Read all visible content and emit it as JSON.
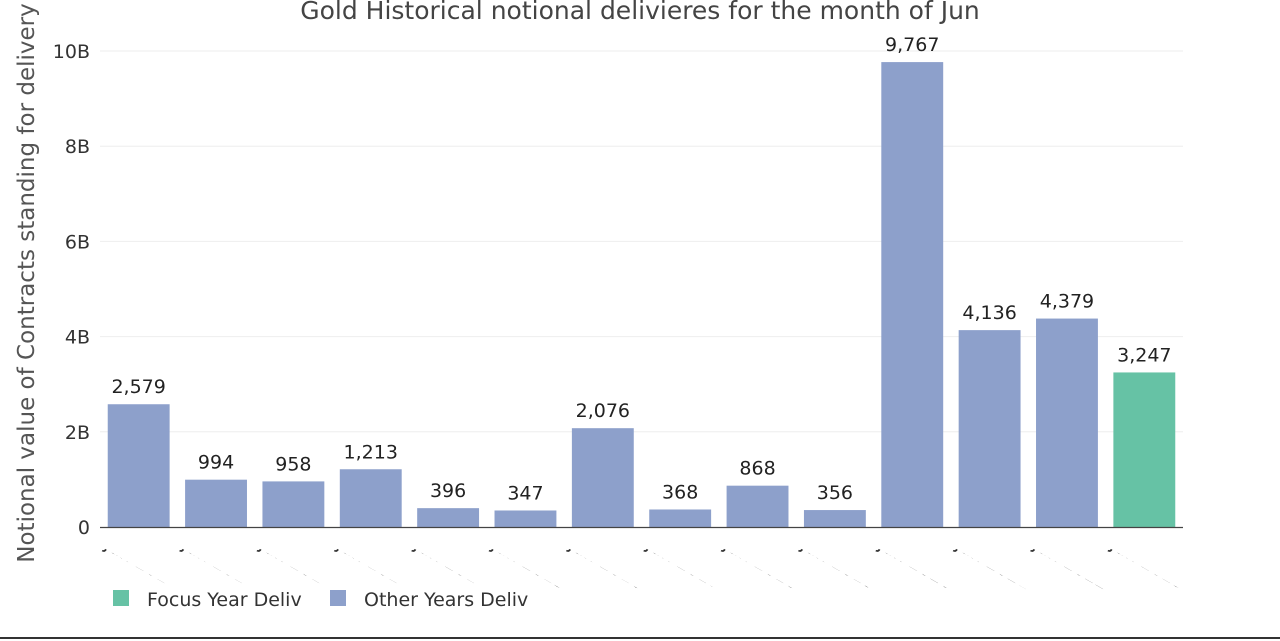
{
  "chart_data": {
    "type": "bar",
    "title": "Gold Historical notional delivieres for the month of Jun",
    "xlabel": "",
    "ylabel": "Notional value of Contracts standing for delivery",
    "ylim": [
      0,
      10.5
    ],
    "yticks": [
      {
        "value": 0,
        "label": "0"
      },
      {
        "value": 2,
        "label": "2B"
      },
      {
        "value": 4,
        "label": "4B"
      },
      {
        "value": 6,
        "label": "6B"
      },
      {
        "value": 8,
        "label": "8B"
      },
      {
        "value": 10,
        "label": "10B"
      }
    ],
    "categories": [
      "Jun 2010",
      "Jun 2011",
      "Jun 2012",
      "Jun 2013",
      "Jun 2014",
      "Jun 2015",
      "Jun 2016",
      "Jun 2017",
      "Jun 2018",
      "Jun 2019",
      "Jun 2020",
      "Jun 2021",
      "Jun 2022",
      "Jun 2023"
    ],
    "tick_labels": [
      "Jun 201",
      "Jun 201",
      "Jun 201",
      "Jun 201",
      "Jun 201",
      "Jun 2015",
      "Jun 2016",
      "Jun 2017",
      "Jun 2018",
      "Jun 2019",
      "Jun 2020",
      "Jun 2021",
      "Jun 2022",
      "Jun 2023"
    ],
    "values": [
      2.579,
      0.994,
      0.958,
      1.213,
      0.396,
      0.347,
      2.076,
      0.368,
      0.868,
      0.356,
      9.767,
      4.136,
      4.379,
      3.247
    ],
    "data_labels": [
      "2,579",
      "994",
      "958",
      "1,213",
      "396",
      "347",
      "2,076",
      "368",
      "868",
      "356",
      "9,767",
      "4,136",
      "4,379",
      "3,247"
    ],
    "groups": [
      "other",
      "other",
      "other",
      "other",
      "other",
      "other",
      "other",
      "other",
      "other",
      "other",
      "other",
      "other",
      "other",
      "focus"
    ],
    "legend": {
      "placement": "bottom-left",
      "entries": [
        {
          "key": "focus",
          "label": "Focus Year Deliv",
          "color": "#66c2a5"
        },
        {
          "key": "other",
          "label": "Other Years Deliv",
          "color": "#8da0cb"
        }
      ]
    },
    "grid": true
  }
}
